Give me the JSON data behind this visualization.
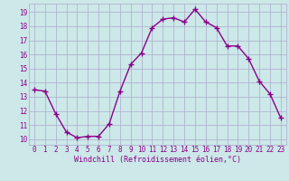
{
  "x": [
    0,
    1,
    2,
    3,
    4,
    5,
    6,
    7,
    8,
    9,
    10,
    11,
    12,
    13,
    14,
    15,
    16,
    17,
    18,
    19,
    20,
    21,
    22,
    23
  ],
  "y": [
    13.5,
    13.4,
    11.8,
    10.5,
    10.1,
    10.2,
    10.2,
    11.1,
    13.4,
    15.3,
    16.1,
    17.9,
    18.5,
    18.6,
    18.3,
    19.2,
    18.3,
    17.9,
    16.6,
    16.6,
    15.7,
    14.1,
    13.2,
    11.5
  ],
  "line_color": "#8B008B",
  "marker": "+",
  "markersize": 4,
  "linewidth": 1.0,
  "bg_color": "#cce8e8",
  "grid_color": "#aaaacc",
  "xlabel": "Windchill (Refroidissement éolien,°C)",
  "xlabel_color": "#8B008B",
  "xlabel_fontsize": 6.0,
  "yticks": [
    10,
    11,
    12,
    13,
    14,
    15,
    16,
    17,
    18,
    19
  ],
  "xticks": [
    0,
    1,
    2,
    3,
    4,
    5,
    6,
    7,
    8,
    9,
    10,
    11,
    12,
    13,
    14,
    15,
    16,
    17,
    18,
    19,
    20,
    21,
    22,
    23
  ],
  "ylim": [
    9.6,
    19.6
  ],
  "xlim": [
    -0.5,
    23.5
  ],
  "tick_fontsize": 5.5
}
